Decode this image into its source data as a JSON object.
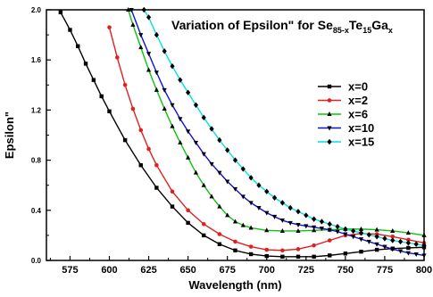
{
  "chart_data": {
    "type": "line",
    "title": {
      "prefix": "Variation of Epsilon\" for Se",
      "sub1": "85-x",
      "mid1": "Te",
      "sub2": "15",
      "mid2": "Ga",
      "sub3": "x"
    },
    "xlabel": "Wavelength (nm)",
    "ylabel": "Epsilon\"",
    "xlim": [
      560,
      800
    ],
    "ylim": [
      0.0,
      2.0
    ],
    "xticks": [
      575,
      600,
      625,
      650,
      675,
      700,
      725,
      750,
      775,
      800
    ],
    "yticks": [
      0.0,
      0.4,
      0.8,
      1.2,
      1.6,
      2.0
    ],
    "ytick_labels": [
      "0.0",
      "0.4",
      "0.8",
      "1.2",
      "1.6",
      "2.0"
    ],
    "grid": false,
    "legend_position": "right",
    "series": [
      {
        "name": "x=0",
        "color": "#000000",
        "marker": "square",
        "x": [
          569,
          575,
          580,
          585,
          590,
          595,
          600,
          610,
          620,
          630,
          640,
          650,
          660,
          670,
          680,
          690,
          700,
          710,
          720,
          730,
          740,
          750,
          760,
          770,
          780,
          790,
          800
        ],
        "y": [
          1.98,
          1.84,
          1.71,
          1.57,
          1.44,
          1.31,
          1.19,
          0.96,
          0.76,
          0.58,
          0.43,
          0.3,
          0.2,
          0.13,
          0.08,
          0.05,
          0.035,
          0.03,
          0.03,
          0.03,
          0.04,
          0.055,
          0.07,
          0.085,
          0.095,
          0.1,
          0.105
        ]
      },
      {
        "name": "x=2",
        "color": "#e02020",
        "marker": "circle",
        "x": [
          600,
          605,
          610,
          615,
          620,
          625,
          630,
          640,
          650,
          660,
          670,
          680,
          690,
          700,
          710,
          720,
          730,
          740,
          750,
          760,
          770,
          780,
          790,
          800
        ],
        "y": [
          1.86,
          1.62,
          1.4,
          1.21,
          1.04,
          0.89,
          0.76,
          0.55,
          0.4,
          0.29,
          0.21,
          0.15,
          0.11,
          0.085,
          0.08,
          0.09,
          0.12,
          0.16,
          0.2,
          0.215,
          0.21,
          0.19,
          0.165,
          0.14
        ]
      },
      {
        "name": "x=6",
        "color": "#10c010",
        "marker": "triangle-up",
        "x": [
          612,
          615,
          620,
          625,
          630,
          635,
          640,
          645,
          650,
          655,
          660,
          665,
          670,
          675,
          680,
          685,
          690,
          700,
          710,
          720,
          730,
          740,
          750,
          760,
          770,
          780,
          790,
          800
        ],
        "y": [
          2.0,
          1.88,
          1.7,
          1.52,
          1.36,
          1.21,
          1.07,
          0.94,
          0.82,
          0.7,
          0.6,
          0.51,
          0.43,
          0.36,
          0.31,
          0.28,
          0.26,
          0.24,
          0.235,
          0.235,
          0.24,
          0.245,
          0.25,
          0.25,
          0.245,
          0.235,
          0.22,
          0.2
        ]
      },
      {
        "name": "x=10",
        "color": "#1010e0",
        "marker": "triangle-down",
        "x": [
          614,
          620,
          625,
          630,
          635,
          640,
          645,
          650,
          655,
          660,
          665,
          670,
          675,
          680,
          685,
          690,
          695,
          700,
          705,
          710,
          715,
          720,
          725,
          730,
          735,
          740,
          745,
          750,
          755,
          760,
          765,
          770,
          775,
          780,
          785,
          790,
          795,
          800
        ],
        "y": [
          2.0,
          1.8,
          1.65,
          1.5,
          1.36,
          1.24,
          1.13,
          1.03,
          0.94,
          0.85,
          0.77,
          0.7,
          0.63,
          0.57,
          0.51,
          0.46,
          0.42,
          0.38,
          0.35,
          0.32,
          0.3,
          0.285,
          0.275,
          0.265,
          0.255,
          0.245,
          0.23,
          0.21,
          0.19,
          0.17,
          0.15,
          0.13,
          0.11,
          0.09,
          0.075,
          0.06,
          0.05,
          0.04
        ]
      },
      {
        "name": "x=15",
        "color": "#00e0e0",
        "marker": "diamond",
        "x": [
          622,
          625,
          630,
          635,
          640,
          645,
          650,
          655,
          660,
          665,
          670,
          675,
          680,
          685,
          690,
          695,
          700,
          705,
          710,
          715,
          720,
          725,
          730,
          735,
          740,
          745,
          750,
          755,
          760,
          765,
          770,
          775,
          780,
          785,
          790,
          795,
          800
        ],
        "y": [
          2.0,
          1.94,
          1.8,
          1.67,
          1.55,
          1.44,
          1.34,
          1.24,
          1.14,
          1.05,
          0.96,
          0.88,
          0.8,
          0.73,
          0.66,
          0.6,
          0.55,
          0.5,
          0.46,
          0.42,
          0.39,
          0.36,
          0.33,
          0.31,
          0.29,
          0.27,
          0.25,
          0.235,
          0.22,
          0.205,
          0.19,
          0.175,
          0.16,
          0.15,
          0.14,
          0.13,
          0.12
        ]
      }
    ]
  }
}
